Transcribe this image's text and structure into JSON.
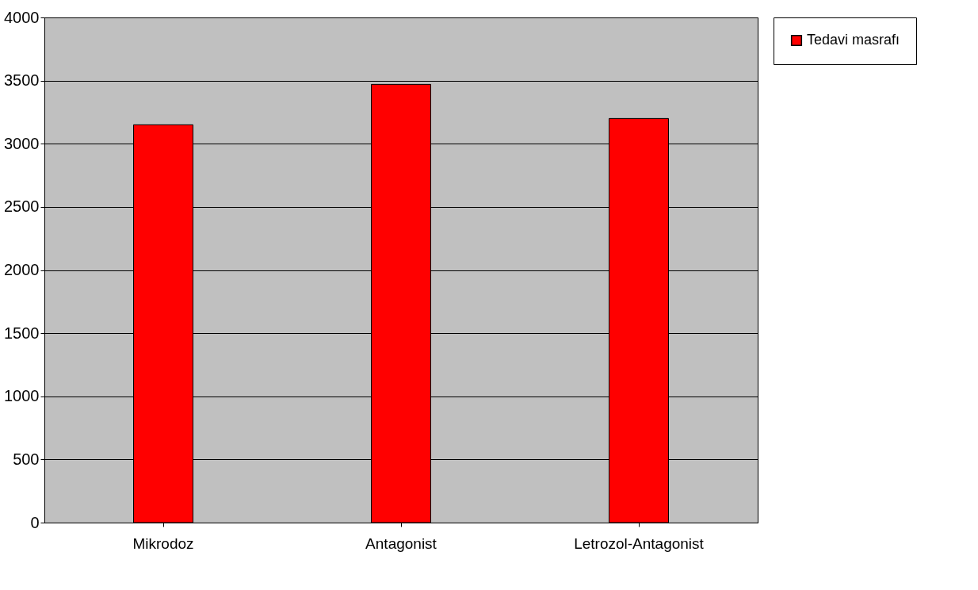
{
  "chart_data": {
    "type": "bar",
    "categories": [
      "Mikrodoz",
      "Antagonist",
      "Letrozol-Antagonist"
    ],
    "series": [
      {
        "name": "Tedavi masrafı",
        "color": "#ff0000",
        "values": [
          3150,
          3470,
          3200
        ]
      }
    ],
    "ylim": [
      0,
      4000
    ],
    "yticks": [
      0,
      500,
      1000,
      1500,
      2000,
      2500,
      3000,
      3500,
      4000
    ],
    "grid": "y",
    "legend": "right"
  }
}
